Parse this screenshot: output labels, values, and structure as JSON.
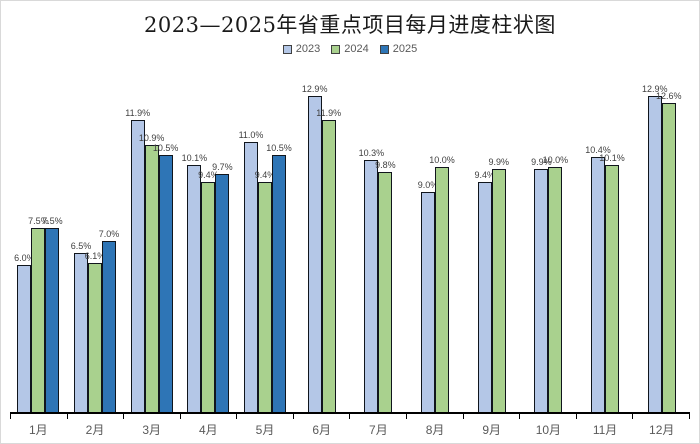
{
  "title": "2023—2025年省重点项目每月进度柱状图",
  "colors": {
    "series_2023": "#b4c7e7",
    "series_2024": "#a9d18e",
    "series_2025": "#2e75b6",
    "bar_border": "#10151c",
    "axis": "#000000",
    "label_text": "#404040",
    "axis_text": "#595959",
    "frame_border": "#d9d9d9"
  },
  "chart_data": {
    "type": "bar",
    "title": "2023—2025年省重点项目每月进度柱状图",
    "categories": [
      "1月",
      "2月",
      "3月",
      "4月",
      "5月",
      "6月",
      "7月",
      "8月",
      "9月",
      "10月",
      "11月",
      "12月"
    ],
    "series": [
      {
        "name": "2023",
        "color": "#b4c7e7",
        "values": [
          6.0,
          6.5,
          11.9,
          10.1,
          11.0,
          12.9,
          10.3,
          9.0,
          9.4,
          9.9,
          10.4,
          12.9
        ]
      },
      {
        "name": "2024",
        "color": "#a9d18e",
        "values": [
          7.5,
          6.1,
          10.9,
          9.4,
          9.4,
          11.9,
          9.8,
          10.0,
          9.9,
          10.0,
          10.1,
          12.6
        ]
      },
      {
        "name": "2025",
        "color": "#2e75b6",
        "values": [
          7.5,
          7.0,
          10.5,
          9.7,
          10.5,
          null,
          null,
          null,
          null,
          null,
          null,
          null
        ]
      }
    ],
    "data_labels": true,
    "label_format": "{value}%",
    "label_decimals": 1,
    "ylim": [
      0,
      13.5
    ],
    "grid": false,
    "legend_position": "top",
    "xlabel": "",
    "ylabel": ""
  }
}
